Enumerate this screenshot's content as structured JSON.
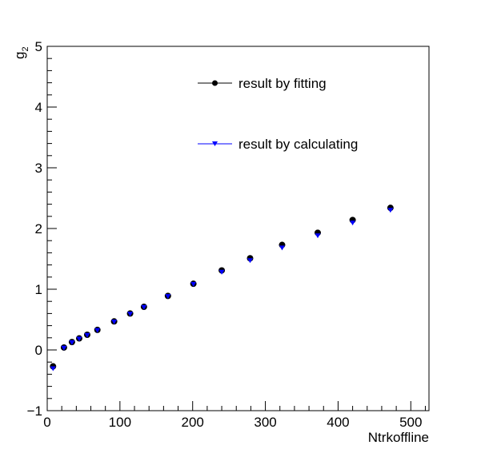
{
  "chart_data": {
    "type": "scatter",
    "title": "",
    "xlabel": "Ntrkoffline",
    "ylabel_main": "g",
    "ylabel_sub": "2",
    "xlim": [
      0,
      525
    ],
    "ylim": [
      -1,
      5
    ],
    "x_ticks": [
      0,
      100,
      200,
      300,
      400,
      500
    ],
    "y_ticks": [
      -1,
      0,
      1,
      2,
      3,
      4,
      5
    ],
    "grid": false,
    "legend_placement": "top-center",
    "series": [
      {
        "name": "result by fitting",
        "color": "#000000",
        "marker": "circle",
        "x": [
          8,
          23,
          34,
          44,
          55,
          69,
          92,
          114,
          133,
          166,
          201,
          240,
          279,
          323,
          372,
          420,
          472
        ],
        "y": [
          -0.27,
          0.04,
          0.13,
          0.19,
          0.25,
          0.33,
          0.47,
          0.6,
          0.71,
          0.89,
          1.09,
          1.31,
          1.51,
          1.73,
          1.93,
          2.14,
          2.34
        ]
      },
      {
        "name": "result by calculating",
        "color": "#0000ff",
        "marker": "triangle-down",
        "x": [
          8,
          23,
          34,
          44,
          55,
          69,
          92,
          114,
          133,
          166,
          201,
          240,
          279,
          323,
          372,
          420,
          472
        ],
        "y": [
          -0.31,
          0.03,
          0.12,
          0.18,
          0.24,
          0.32,
          0.46,
          0.59,
          0.7,
          0.88,
          1.08,
          1.28,
          1.47,
          1.68,
          1.88,
          2.09,
          2.3
        ]
      }
    ]
  }
}
